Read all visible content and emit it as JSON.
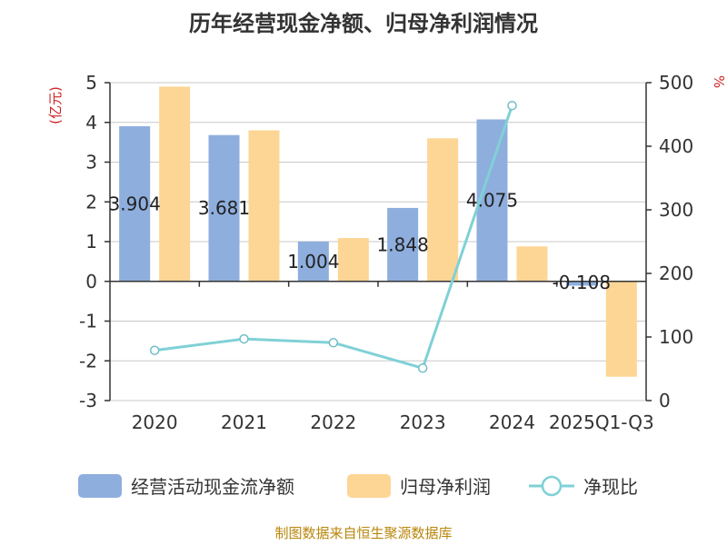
{
  "colors": {
    "cash_bar": "#8eaedd",
    "profit_bar": "#fdd595",
    "ratio_line": "#7fd1d6",
    "grid": "#c8c8c8",
    "axis": "#333333",
    "unit": "#cc2222",
    "source": "#b8860b"
  },
  "source_text": "制图数据来自恒生聚源数据库",
  "chart_data": {
    "type": "bar",
    "title": "历年经营现金净额、归母净利润情况",
    "categories": [
      "2020",
      "2021",
      "2022",
      "2023",
      "2024",
      "2025Q1-Q3"
    ],
    "left_axis": {
      "unit_label": "(亿元)",
      "ylim": [
        -3,
        5
      ],
      "ticks": [
        -3,
        -2,
        -1,
        0,
        1,
        2,
        3,
        4,
        5
      ]
    },
    "right_axis": {
      "unit_label": "%",
      "ylim": [
        0,
        500
      ],
      "ticks": [
        0,
        100,
        200,
        300,
        400,
        500
      ]
    },
    "grid": true,
    "legend_position": "bottom",
    "series": [
      {
        "name": "经营活动现金流净额",
        "type": "bar",
        "axis": "left",
        "color": "#8eaedd",
        "values": [
          3.904,
          3.681,
          1.004,
          1.848,
          4.075,
          -0.108
        ],
        "labels": [
          "3.904",
          "3.681",
          "1.004",
          "1.848",
          "4.075",
          "-0.108"
        ]
      },
      {
        "name": "归母净利润",
        "type": "bar",
        "axis": "left",
        "color": "#fdd595",
        "values": [
          4.9,
          3.8,
          1.09,
          3.6,
          0.88,
          -2.4
        ]
      },
      {
        "name": "净现比",
        "type": "line",
        "axis": "right",
        "color": "#7fd1d6",
        "values": [
          79,
          97,
          91,
          51,
          464,
          null
        ]
      }
    ]
  }
}
